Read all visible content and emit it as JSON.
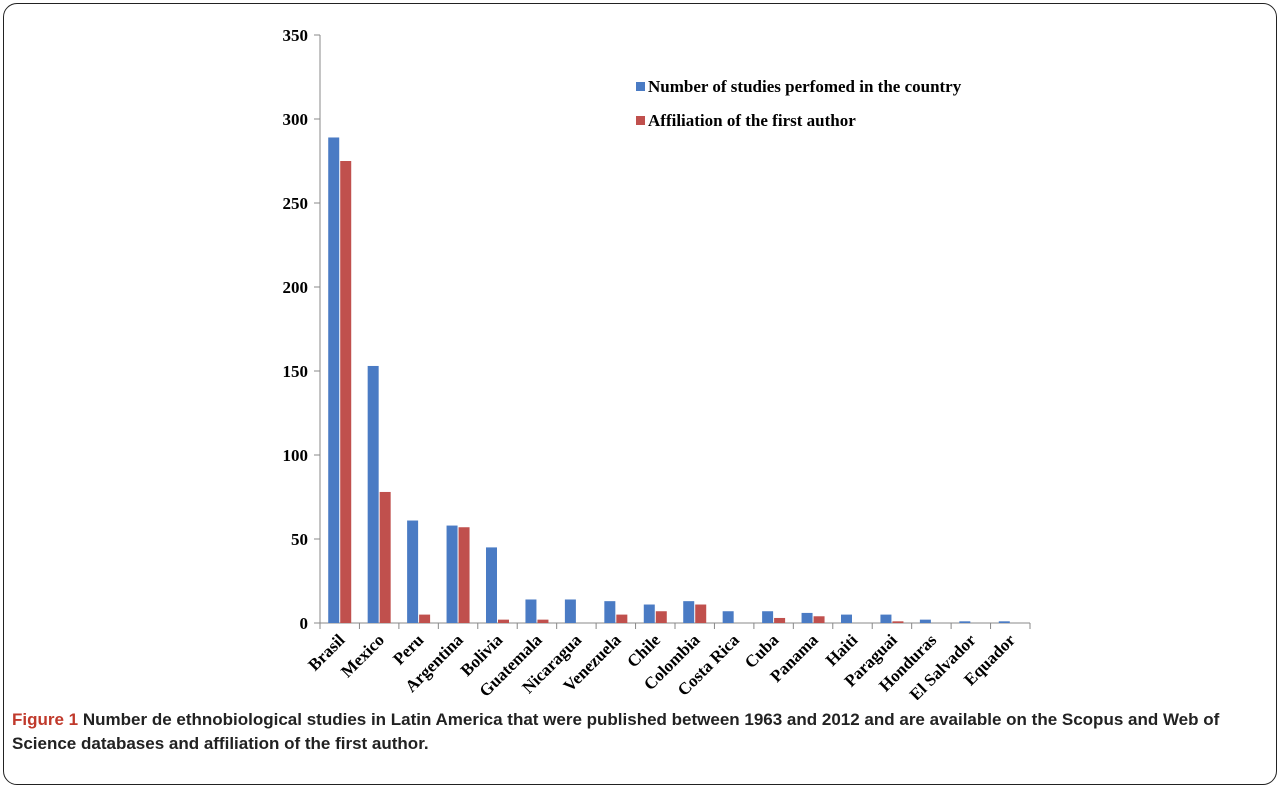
{
  "caption": {
    "label": "Figure 1",
    "text": "Number de ethnobiological studies in Latin America that were published between 1963 and 2012 and are available on the Scopus and Web of Science databases and affiliation of the first author."
  },
  "colors": {
    "series_1": "#4a7bc4",
    "series_2": "#c0504d"
  },
  "chart_data": {
    "type": "bar",
    "categories": [
      "Brasil",
      "Mexico",
      "Peru",
      "Argentina",
      "Bolivia",
      "Guatemala",
      "Nicaragua",
      "Venezuela",
      "Chile",
      "Colombia",
      "Costa Rica",
      "Cuba",
      "Panama",
      "Haiti",
      "Paraguai",
      "Honduras",
      "El Salvador",
      "Equador"
    ],
    "series": [
      {
        "name": "Number of studies perfomed in the country",
        "values": [
          289,
          153,
          61,
          58,
          45,
          14,
          14,
          13,
          11,
          13,
          7,
          7,
          6,
          5,
          5,
          2,
          1,
          1
        ]
      },
      {
        "name": "Affiliation of the first author",
        "values": [
          275,
          78,
          5,
          57,
          2,
          2,
          0,
          5,
          7,
          11,
          0,
          3,
          4,
          0,
          1,
          0,
          0,
          0
        ]
      }
    ],
    "ylim": [
      0,
      350
    ],
    "yticks": [
      0,
      50,
      100,
      150,
      200,
      250,
      300,
      350
    ],
    "title": "",
    "xlabel": "",
    "ylabel": "",
    "legend": "top-right",
    "grid": false
  }
}
